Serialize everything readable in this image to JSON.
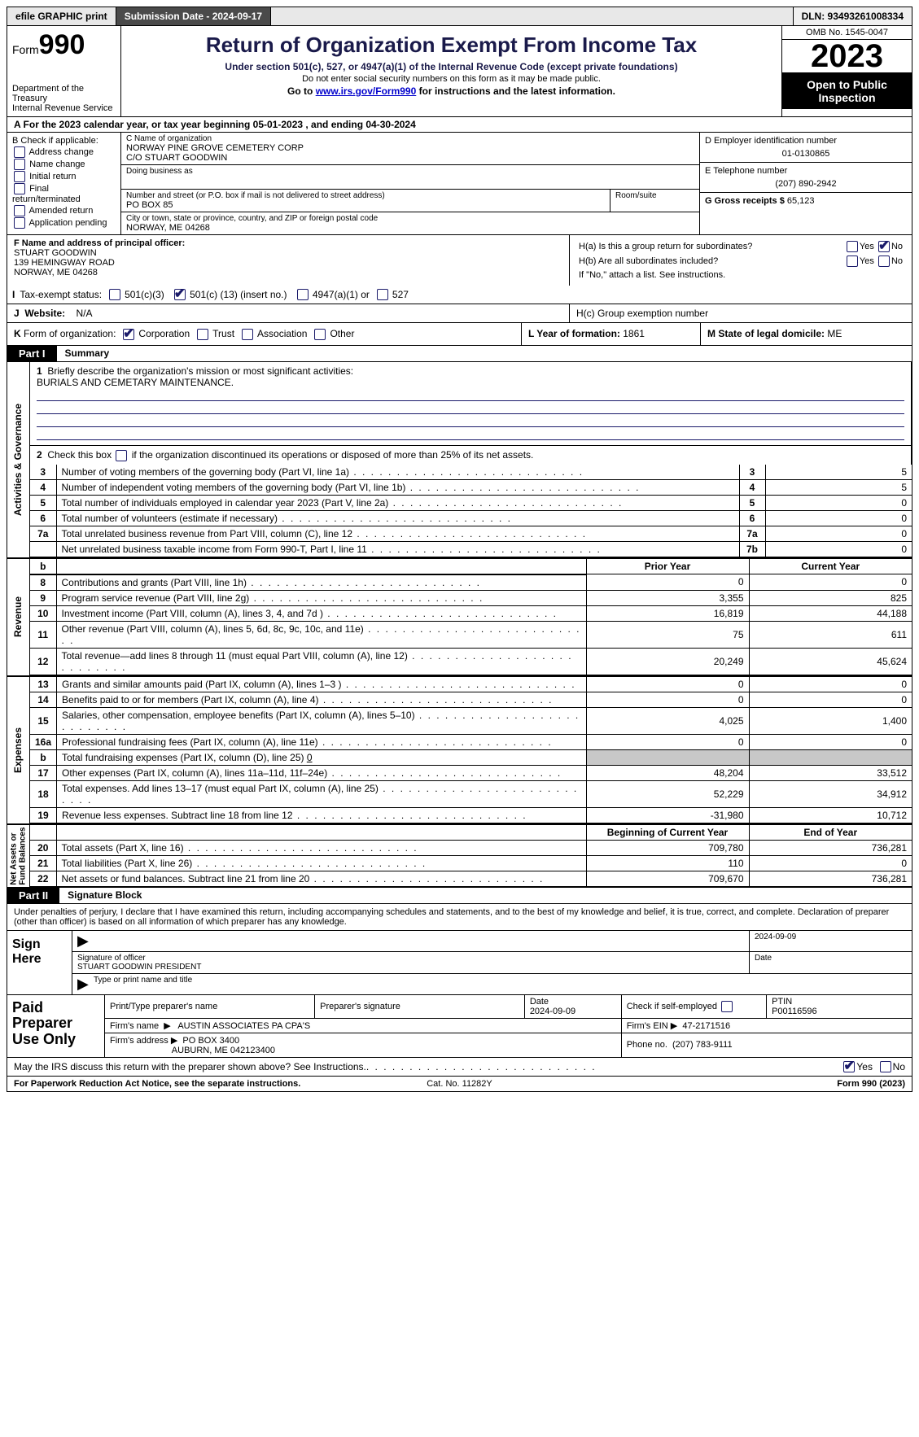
{
  "topbar": {
    "efile": "efile GRAPHIC print",
    "submission": "Submission Date - 2024-09-17",
    "dln": "DLN: 93493261008334"
  },
  "header": {
    "form_prefix": "Form",
    "form_num": "990",
    "dept1": "Department of the Treasury",
    "dept2": "Internal Revenue Service",
    "title": "Return of Organization Exempt From Income Tax",
    "sub1": "Under section 501(c), 527, or 4947(a)(1) of the Internal Revenue Code (except private foundations)",
    "sub2": "Do not enter social security numbers on this form as it may be made public.",
    "sub3_pre": "Go to ",
    "sub3_link": "www.irs.gov/Form990",
    "sub3_post": " for instructions and the latest information.",
    "omb": "OMB No. 1545-0047",
    "year": "2023",
    "open": "Open to Public Inspection"
  },
  "row_a": "A For the 2023 calendar year, or tax year beginning 05-01-2023    , and ending 04-30-2024",
  "box_b": {
    "title": "B Check if applicable:",
    "items": [
      "Address change",
      "Name change",
      "Initial return",
      "Final return/terminated",
      "Amended return",
      "Application pending"
    ]
  },
  "box_c": {
    "name_lbl": "C Name of organization",
    "name": "NORWAY PINE GROVE CEMETERY CORP",
    "co": "C/O STUART GOODWIN",
    "dba_lbl": "Doing business as",
    "addr_lbl": "Number and street (or P.O. box if mail is not delivered to street address)",
    "room_lbl": "Room/suite",
    "addr": "PO BOX 85",
    "city_lbl": "City or town, state or province, country, and ZIP or foreign postal code",
    "city": "NORWAY, ME  04268"
  },
  "box_d": {
    "ein_lbl": "D Employer identification number",
    "ein": "01-0130865",
    "tel_lbl": "E Telephone number",
    "tel": "(207) 890-2942",
    "gross_lbl": "G Gross receipts $ ",
    "gross": "65,123"
  },
  "box_f": {
    "lbl": "F  Name and address of principal officer:",
    "l1": "STUART GOODWIN",
    "l2": "139 HEMINGWAY ROAD",
    "l3": "NORWAY, ME  04268"
  },
  "box_h": {
    "ha": "H(a)  Is this a group return for subordinates?",
    "hb": "H(b)  Are all subordinates included?",
    "hb_note": "If \"No,\" attach a list. See instructions.",
    "hc": "H(c)  Group exemption number"
  },
  "box_i": {
    "lbl": "I",
    "txt": "Tax-exempt status:",
    "opt1": "501(c)(3)",
    "opt2_pre": "501(c) (",
    "opt2_val": "13",
    "opt2_post": ") (insert no.)",
    "opt3": "4947(a)(1) or",
    "opt4": "527"
  },
  "box_j": {
    "lbl": "J",
    "txt": "Website:",
    "val": "N/A"
  },
  "box_k": {
    "lbl": "K",
    "txt": "Form of organization:",
    "opts": [
      "Corporation",
      "Trust",
      "Association",
      "Other"
    ]
  },
  "box_l": {
    "txt": "L Year of formation: ",
    "val": "1861"
  },
  "box_m": {
    "txt": "M State of legal domicile: ",
    "val": "ME"
  },
  "part1": {
    "tag": "Part I",
    "title": "Summary"
  },
  "summary": {
    "line1_lbl": "1",
    "line1_txt": "Briefly describe the organization's mission or most significant activities:",
    "line1_val": "BURIALS AND CEMETARY MAINTENANCE.",
    "line2_lbl": "2",
    "line2_txt": "Check this box ",
    "line2_post": " if the organization discontinued its operations or disposed of more than 25% of its net assets."
  },
  "gov_rows": [
    {
      "n": "3",
      "d": "Number of voting members of the governing body (Part VI, line 1a)",
      "box": "3",
      "v": "5"
    },
    {
      "n": "4",
      "d": "Number of independent voting members of the governing body (Part VI, line 1b)",
      "box": "4",
      "v": "5"
    },
    {
      "n": "5",
      "d": "Total number of individuals employed in calendar year 2023 (Part V, line 2a)",
      "box": "5",
      "v": "0"
    },
    {
      "n": "6",
      "d": "Total number of volunteers (estimate if necessary)",
      "box": "6",
      "v": "0"
    },
    {
      "n": "7a",
      "d": "Total unrelated business revenue from Part VIII, column (C), line 12",
      "box": "7a",
      "v": "0"
    },
    {
      "n": "",
      "d": "Net unrelated business taxable income from Form 990-T, Part I, line 11",
      "box": "7b",
      "v": "0"
    }
  ],
  "rev_hdr": {
    "b": "b",
    "py": "Prior Year",
    "cy": "Current Year"
  },
  "rev_rows": [
    {
      "n": "8",
      "d": "Contributions and grants (Part VIII, line 1h)",
      "py": "0",
      "cy": "0"
    },
    {
      "n": "9",
      "d": "Program service revenue (Part VIII, line 2g)",
      "py": "3,355",
      "cy": "825"
    },
    {
      "n": "10",
      "d": "Investment income (Part VIII, column (A), lines 3, 4, and 7d )",
      "py": "16,819",
      "cy": "44,188"
    },
    {
      "n": "11",
      "d": "Other revenue (Part VIII, column (A), lines 5, 6d, 8c, 9c, 10c, and 11e)",
      "py": "75",
      "cy": "611"
    },
    {
      "n": "12",
      "d": "Total revenue—add lines 8 through 11 (must equal Part VIII, column (A), line 12)",
      "py": "20,249",
      "cy": "45,624"
    }
  ],
  "exp_rows": [
    {
      "n": "13",
      "d": "Grants and similar amounts paid (Part IX, column (A), lines 1–3 )",
      "py": "0",
      "cy": "0"
    },
    {
      "n": "14",
      "d": "Benefits paid to or for members (Part IX, column (A), line 4)",
      "py": "0",
      "cy": "0"
    },
    {
      "n": "15",
      "d": "Salaries, other compensation, employee benefits (Part IX, column (A), lines 5–10)",
      "py": "4,025",
      "cy": "1,400"
    },
    {
      "n": "16a",
      "d": "Professional fundraising fees (Part IX, column (A), line 11e)",
      "py": "0",
      "cy": "0"
    }
  ],
  "exp_16b": {
    "n": "b",
    "d": "Total fundraising expenses (Part IX, column (D), line 25) ",
    "v": "0"
  },
  "exp_rows2": [
    {
      "n": "17",
      "d": "Other expenses (Part IX, column (A), lines 11a–11d, 11f–24e)",
      "py": "48,204",
      "cy": "33,512"
    },
    {
      "n": "18",
      "d": "Total expenses. Add lines 13–17 (must equal Part IX, column (A), line 25)",
      "py": "52,229",
      "cy": "34,912"
    },
    {
      "n": "19",
      "d": "Revenue less expenses. Subtract line 18 from line 12",
      "py": "-31,980",
      "cy": "10,712"
    }
  ],
  "na_hdr": {
    "py": "Beginning of Current Year",
    "cy": "End of Year"
  },
  "na_rows": [
    {
      "n": "20",
      "d": "Total assets (Part X, line 16)",
      "py": "709,780",
      "cy": "736,281"
    },
    {
      "n": "21",
      "d": "Total liabilities (Part X, line 26)",
      "py": "110",
      "cy": "0"
    },
    {
      "n": "22",
      "d": "Net assets or fund balances. Subtract line 21 from line 20",
      "py": "709,670",
      "cy": "736,281"
    }
  ],
  "part2": {
    "tag": "Part II",
    "title": "Signature Block"
  },
  "perjury": "Under penalties of perjury, I declare that I have examined this return, including accompanying schedules and statements, and to the best of my knowledge and belief, it is true, correct, and complete. Declaration of preparer (other than officer) is based on all information of which preparer has any knowledge.",
  "sign": {
    "here": "Sign Here",
    "date": "2024-09-09",
    "sig_lbl": "Signature of officer",
    "name": "STUART GOODWIN  PRESIDENT",
    "name_lbl": "Type or print name and title",
    "date_lbl": "Date"
  },
  "paid": {
    "title": "Paid Preparer Use Only",
    "h1": "Print/Type preparer's name",
    "h2": "Preparer's signature",
    "h3": "Date",
    "h3v": "2024-09-09",
    "h4": "Check          if self-employed",
    "h5": "PTIN",
    "h5v": "P00116596",
    "firm_lbl": "Firm's name",
    "firm": "AUSTIN ASSOCIATES PA CPA'S",
    "ein_lbl": "Firm's EIN",
    "ein": "47-2171516",
    "addr_lbl": "Firm's address",
    "addr1": "PO BOX 3400",
    "addr2": "AUBURN, ME  042123400",
    "phone_lbl": "Phone no.",
    "phone": "(207) 783-9111"
  },
  "may_irs": "May the IRS discuss this return with the preparer shown above? See Instructions.",
  "footer": {
    "l": "For Paperwork Reduction Act Notice, see the separate instructions.",
    "c": "Cat. No. 11282Y",
    "r": "Form 990 (2023)"
  }
}
